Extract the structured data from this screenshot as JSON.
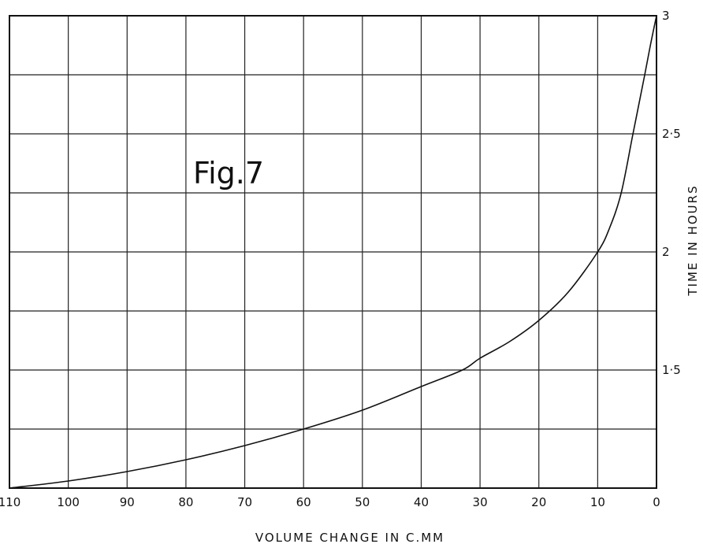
{
  "chart_data": {
    "type": "line",
    "title": "",
    "annotation": "Fig.7",
    "xlabel": "VOLUME CHANGE IN C.MM",
    "ylabel": "TIME IN HOURS",
    "xlim": [
      110,
      0
    ],
    "ylim": [
      1,
      3
    ],
    "x_ticks": [
      110,
      100,
      90,
      80,
      70,
      60,
      50,
      40,
      30,
      20,
      10,
      0
    ],
    "x_tick_labels": [
      "110",
      "100",
      "90",
      "80",
      "70",
      "60",
      "50",
      "40",
      "30",
      "20",
      "10",
      "0"
    ],
    "y_ticks": [
      1.5,
      2,
      2.5,
      3
    ],
    "y_tick_labels": [
      "1·5",
      "2",
      "2·5",
      "3"
    ],
    "grid": true,
    "series": [
      {
        "x": [
          110,
          100,
          90,
          80,
          70,
          60,
          50,
          40,
          33,
          30,
          25,
          20,
          15,
          10,
          8,
          6,
          4,
          2,
          1,
          0
        ],
        "y": [
          1.0,
          1.03,
          1.07,
          1.12,
          1.18,
          1.25,
          1.33,
          1.43,
          1.5,
          1.55,
          1.62,
          1.71,
          1.83,
          2.0,
          2.1,
          2.25,
          2.5,
          2.75,
          2.88,
          3.0
        ]
      }
    ]
  }
}
